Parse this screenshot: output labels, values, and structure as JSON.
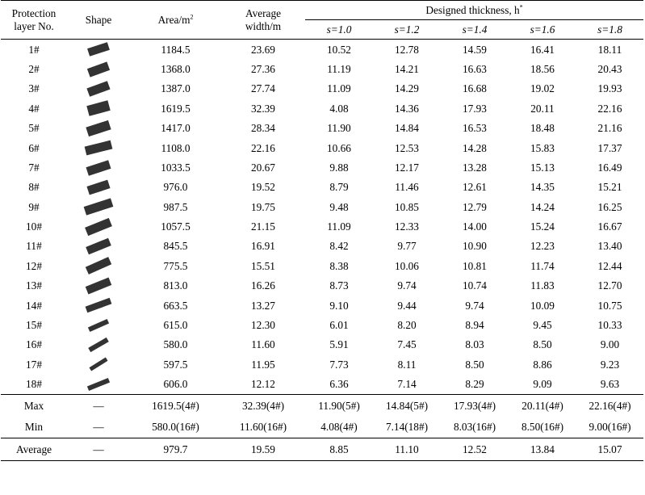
{
  "header": {
    "protection_no": "Protection\nlayer No.",
    "shape": "Shape",
    "area": "Area/m",
    "area_sup": "2",
    "avg_width": "Average\nwidth/m",
    "designed": "Designed thickness, h",
    "designed_sup": "*",
    "s_cols": [
      "s=1.0",
      "s=1.2",
      "s=1.4",
      "s=1.6",
      "s=1.8"
    ]
  },
  "rows": [
    {
      "no": "1#",
      "area": "1184.5",
      "width": "23.69",
      "t": [
        "10.52",
        "12.78",
        "14.59",
        "16.41",
        "18.11"
      ],
      "shape": {
        "angle": -18,
        "len": 26,
        "thick": 10
      }
    },
    {
      "no": "2#",
      "area": "1368.0",
      "width": "27.36",
      "t": [
        "11.19",
        "14.21",
        "16.63",
        "18.56",
        "20.43"
      ],
      "shape": {
        "angle": -20,
        "len": 26,
        "thick": 11
      }
    },
    {
      "no": "3#",
      "area": "1387.0",
      "width": "27.74",
      "t": [
        "11.09",
        "14.29",
        "16.68",
        "19.02",
        "19.93"
      ],
      "shape": {
        "angle": -20,
        "len": 27,
        "thick": 11
      }
    },
    {
      "no": "4#",
      "area": "1619.5",
      "width": "32.39",
      "t": [
        "4.08",
        "14.36",
        "17.93",
        "20.11",
        "22.16"
      ],
      "shape": {
        "angle": -15,
        "len": 27,
        "thick": 13
      }
    },
    {
      "no": "5#",
      "area": "1417.0",
      "width": "28.34",
      "t": [
        "11.90",
        "14.84",
        "16.53",
        "18.48",
        "21.16"
      ],
      "shape": {
        "angle": -18,
        "len": 29,
        "thick": 12
      }
    },
    {
      "no": "6#",
      "area": "1108.0",
      "width": "22.16",
      "t": [
        "10.66",
        "12.53",
        "14.28",
        "15.83",
        "17.37"
      ],
      "shape": {
        "angle": -14,
        "len": 33,
        "thick": 11
      }
    },
    {
      "no": "7#",
      "area": "1033.5",
      "width": "20.67",
      "t": [
        "9.88",
        "12.17",
        "13.28",
        "15.13",
        "16.49"
      ],
      "shape": {
        "angle": -18,
        "len": 29,
        "thick": 11
      }
    },
    {
      "no": "8#",
      "area": "976.0",
      "width": "19.52",
      "t": [
        "8.79",
        "11.46",
        "12.61",
        "14.35",
        "15.21"
      ],
      "shape": {
        "angle": -18,
        "len": 27,
        "thick": 11
      }
    },
    {
      "no": "9#",
      "area": "987.5",
      "width": "19.75",
      "t": [
        "9.48",
        "10.85",
        "12.79",
        "14.24",
        "16.25"
      ],
      "shape": {
        "angle": -18,
        "len": 35,
        "thick": 11
      }
    },
    {
      "no": "10#",
      "area": "1057.5",
      "width": "21.15",
      "t": [
        "11.09",
        "12.33",
        "14.00",
        "15.24",
        "16.67"
      ],
      "shape": {
        "angle": -22,
        "len": 32,
        "thick": 11
      }
    },
    {
      "no": "11#",
      "area": "845.5",
      "width": "16.91",
      "t": [
        "8.42",
        "9.77",
        "10.90",
        "12.23",
        "13.40"
      ],
      "shape": {
        "angle": -22,
        "len": 30,
        "thick": 10
      }
    },
    {
      "no": "12#",
      "area": "775.5",
      "width": "15.51",
      "t": [
        "8.38",
        "10.06",
        "10.81",
        "11.74",
        "12.44"
      ],
      "shape": {
        "angle": -24,
        "len": 31,
        "thick": 10
      }
    },
    {
      "no": "13#",
      "area": "813.0",
      "width": "16.26",
      "t": [
        "8.73",
        "9.74",
        "10.74",
        "11.83",
        "12.70"
      ],
      "shape": {
        "angle": -22,
        "len": 31,
        "thick": 10
      }
    },
    {
      "no": "14#",
      "area": "663.5",
      "width": "13.27",
      "t": [
        "9.10",
        "9.44",
        "9.74",
        "10.09",
        "10.75"
      ],
      "shape": {
        "angle": -20,
        "len": 32,
        "thick": 8
      }
    },
    {
      "no": "15#",
      "area": "615.0",
      "width": "12.30",
      "t": [
        "6.01",
        "8.20",
        "8.94",
        "9.45",
        "10.33"
      ],
      "shape": {
        "angle": -24,
        "len": 26,
        "thick": 6
      }
    },
    {
      "no": "16#",
      "area": "580.0",
      "width": "11.60",
      "t": [
        "5.91",
        "7.45",
        "8.03",
        "8.50",
        "9.00"
      ],
      "shape": {
        "angle": -30,
        "len": 26,
        "thick": 6
      }
    },
    {
      "no": "17#",
      "area": "597.5",
      "width": "11.95",
      "t": [
        "7.73",
        "8.11",
        "8.50",
        "8.86",
        "9.23"
      ],
      "shape": {
        "angle": -32,
        "len": 24,
        "thick": 5
      }
    },
    {
      "no": "18#",
      "area": "606.0",
      "width": "12.12",
      "t": [
        "6.36",
        "7.14",
        "8.29",
        "9.09",
        "9.63"
      ],
      "shape": {
        "angle": -22,
        "len": 28,
        "thick": 6
      }
    }
  ],
  "summary": [
    {
      "label": "Max",
      "shape": "—",
      "area": "1619.5(4#)",
      "width": "32.39(4#)",
      "t": [
        "11.90(5#)",
        "14.84(5#)",
        "17.93(4#)",
        "20.11(4#)",
        "22.16(4#)"
      ]
    },
    {
      "label": "Min",
      "shape": "—",
      "area": "580.0(16#)",
      "width": "11.60(16#)",
      "t": [
        "4.08(4#)",
        "7.14(18#)",
        "8.03(16#)",
        "8.50(16#)",
        "9.00(16#)"
      ]
    },
    {
      "label": "Average",
      "shape": "—",
      "area": "979.7",
      "width": "19.59",
      "t": [
        "8.85",
        "11.10",
        "12.52",
        "13.84",
        "15.07"
      ]
    }
  ],
  "colors": {
    "shape_fill": "#333333",
    "rule": "#000000"
  }
}
